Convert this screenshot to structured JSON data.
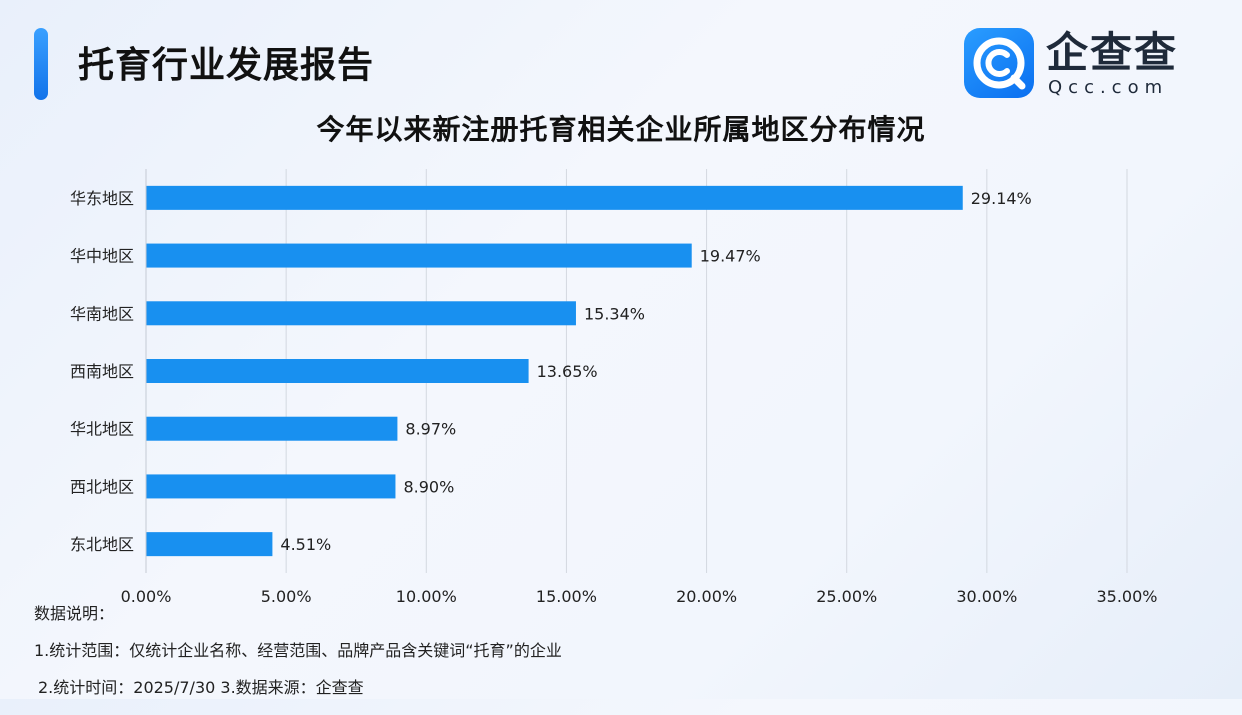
{
  "header": {
    "report_title": "托育行业发展报告",
    "logo_name": "企查查",
    "logo_domain": "Qcc.com",
    "logo_icon": "qcc-magnifier-c-icon",
    "accent_color": "#1890f0"
  },
  "chart_data": {
    "type": "bar",
    "orientation": "horizontal",
    "title": "今年以来新注册托育相关企业所属地区分布情况",
    "categories": [
      "华东地区",
      "华中地区",
      "华南地区",
      "西南地区",
      "华北地区",
      "西北地区",
      "东北地区"
    ],
    "values": [
      29.14,
      19.47,
      15.34,
      13.65,
      8.97,
      8.9,
      4.51
    ],
    "value_labels": [
      "29.14%",
      "19.47%",
      "15.34%",
      "13.65%",
      "8.97%",
      "8.90%",
      "4.51%"
    ],
    "xlim": [
      0,
      35
    ],
    "xticks": [
      0,
      5,
      10,
      15,
      20,
      25,
      30,
      35
    ],
    "xtick_labels": [
      "0.00%",
      "5.00%",
      "10.00%",
      "15.00%",
      "20.00%",
      "25.00%",
      "30.00%",
      "35.00%"
    ],
    "grid": "vertical",
    "bar_color": "#1890f0",
    "xlabel": "",
    "ylabel": ""
  },
  "notes": {
    "heading": "数据说明：",
    "line1": "1.统计范围：仅统计企业名称、经营范围、品牌产品含关键词“托育”的企业",
    "line2": "2.统计时间：2025/7/30 3.数据来源：企查查"
  }
}
